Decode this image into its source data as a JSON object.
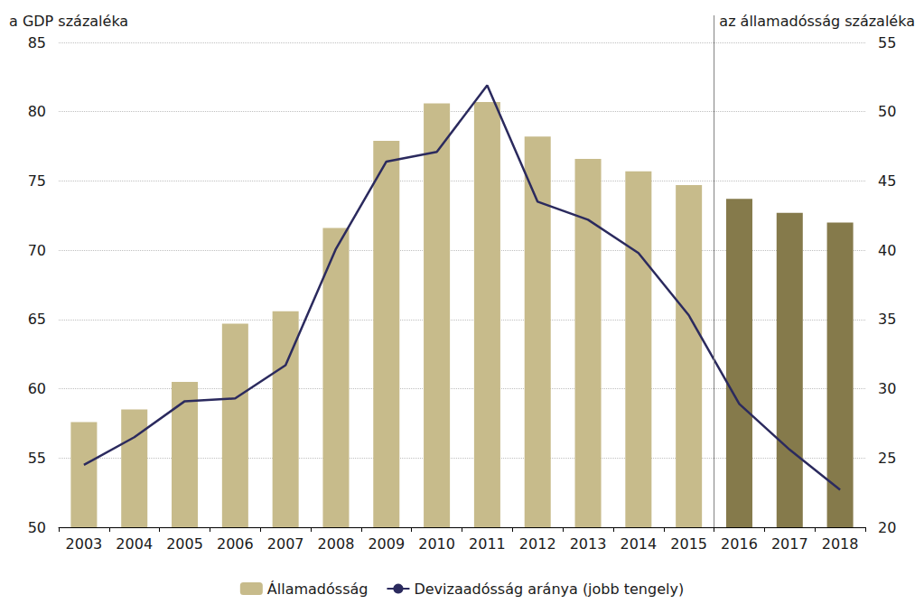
{
  "chart_data": {
    "type": "bar",
    "y_label": "a GDP százaléka",
    "y2_label": "az államadósság százaléka",
    "categories": [
      "2003",
      "2004",
      "2005",
      "2006",
      "2007",
      "2008",
      "2009",
      "2010",
      "2011",
      "2012",
      "2013",
      "2014",
      "2015",
      "2016",
      "2017",
      "2018"
    ],
    "series": [
      {
        "name": "Államadósság",
        "type": "bar",
        "colors": [
          "#c7bb8b",
          "#c7bb8b",
          "#c7bb8b",
          "#c7bb8b",
          "#c7bb8b",
          "#c7bb8b",
          "#c7bb8b",
          "#c7bb8b",
          "#c7bb8b",
          "#c7bb8b",
          "#c7bb8b",
          "#c7bb8b",
          "#c7bb8b",
          "#857a4b",
          "#857a4b",
          "#857a4b"
        ],
        "values": [
          57.6,
          58.5,
          60.5,
          64.7,
          65.6,
          71.6,
          77.9,
          80.6,
          80.7,
          78.2,
          76.6,
          75.7,
          74.7,
          73.7,
          72.7,
          72.0
        ]
      },
      {
        "name": "Devizaadósság aránya (jobb tengely)",
        "type": "line",
        "axis": "y2",
        "color": "#2b2a5e",
        "values": [
          24.5,
          26.5,
          29.1,
          29.3,
          31.7,
          40.1,
          46.4,
          47.1,
          51.9,
          43.5,
          42.2,
          39.8,
          35.3,
          28.9,
          25.6,
          22.7
        ]
      }
    ],
    "ylim": [
      50,
      85
    ],
    "yticks": [
      50,
      55,
      60,
      65,
      70,
      75,
      80,
      85
    ],
    "y2lim": [
      20,
      55
    ],
    "y2ticks": [
      20,
      25,
      30,
      35,
      40,
      45,
      50,
      55
    ],
    "grid": true,
    "legend": "bottom"
  }
}
